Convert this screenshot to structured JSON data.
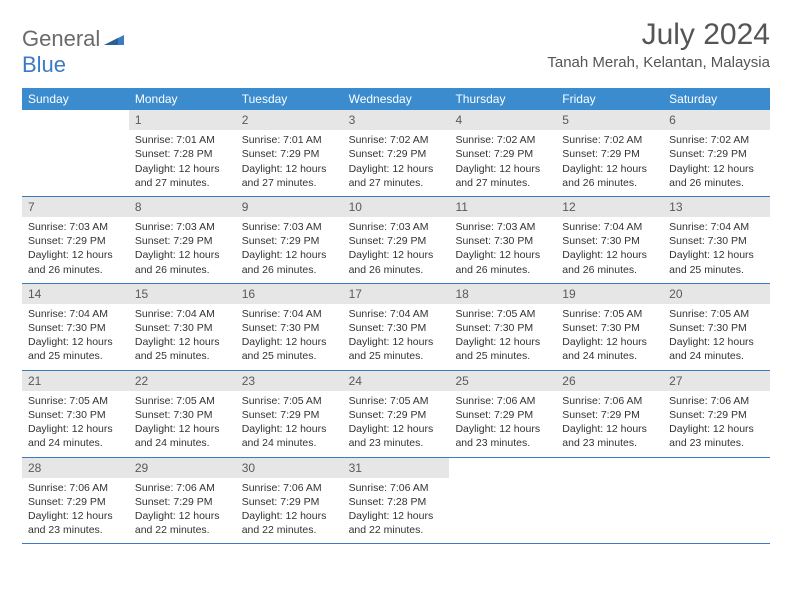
{
  "logo": {
    "text1": "General",
    "text2": "Blue"
  },
  "title": "July 2024",
  "location": "Tanah Merah, Kelantan, Malaysia",
  "colors": {
    "header_bg": "#3b8bcf",
    "header_text": "#ffffff",
    "day_num_bg": "#e6e6e6",
    "day_num_text": "#5a5a5a",
    "week_divider": "#3b7bc4",
    "body_text": "#333333",
    "logo_gray": "#6a6a6a",
    "logo_blue": "#3b7bc4"
  },
  "weekdays": [
    "Sunday",
    "Monday",
    "Tuesday",
    "Wednesday",
    "Thursday",
    "Friday",
    "Saturday"
  ],
  "start_offset": 1,
  "days": [
    {
      "n": "1",
      "sunrise": "7:01 AM",
      "sunset": "7:28 PM",
      "daylight": "12 hours and 27 minutes."
    },
    {
      "n": "2",
      "sunrise": "7:01 AM",
      "sunset": "7:29 PM",
      "daylight": "12 hours and 27 minutes."
    },
    {
      "n": "3",
      "sunrise": "7:02 AM",
      "sunset": "7:29 PM",
      "daylight": "12 hours and 27 minutes."
    },
    {
      "n": "4",
      "sunrise": "7:02 AM",
      "sunset": "7:29 PM",
      "daylight": "12 hours and 27 minutes."
    },
    {
      "n": "5",
      "sunrise": "7:02 AM",
      "sunset": "7:29 PM",
      "daylight": "12 hours and 26 minutes."
    },
    {
      "n": "6",
      "sunrise": "7:02 AM",
      "sunset": "7:29 PM",
      "daylight": "12 hours and 26 minutes."
    },
    {
      "n": "7",
      "sunrise": "7:03 AM",
      "sunset": "7:29 PM",
      "daylight": "12 hours and 26 minutes."
    },
    {
      "n": "8",
      "sunrise": "7:03 AM",
      "sunset": "7:29 PM",
      "daylight": "12 hours and 26 minutes."
    },
    {
      "n": "9",
      "sunrise": "7:03 AM",
      "sunset": "7:29 PM",
      "daylight": "12 hours and 26 minutes."
    },
    {
      "n": "10",
      "sunrise": "7:03 AM",
      "sunset": "7:29 PM",
      "daylight": "12 hours and 26 minutes."
    },
    {
      "n": "11",
      "sunrise": "7:03 AM",
      "sunset": "7:30 PM",
      "daylight": "12 hours and 26 minutes."
    },
    {
      "n": "12",
      "sunrise": "7:04 AM",
      "sunset": "7:30 PM",
      "daylight": "12 hours and 26 minutes."
    },
    {
      "n": "13",
      "sunrise": "7:04 AM",
      "sunset": "7:30 PM",
      "daylight": "12 hours and 25 minutes."
    },
    {
      "n": "14",
      "sunrise": "7:04 AM",
      "sunset": "7:30 PM",
      "daylight": "12 hours and 25 minutes."
    },
    {
      "n": "15",
      "sunrise": "7:04 AM",
      "sunset": "7:30 PM",
      "daylight": "12 hours and 25 minutes."
    },
    {
      "n": "16",
      "sunrise": "7:04 AM",
      "sunset": "7:30 PM",
      "daylight": "12 hours and 25 minutes."
    },
    {
      "n": "17",
      "sunrise": "7:04 AM",
      "sunset": "7:30 PM",
      "daylight": "12 hours and 25 minutes."
    },
    {
      "n": "18",
      "sunrise": "7:05 AM",
      "sunset": "7:30 PM",
      "daylight": "12 hours and 25 minutes."
    },
    {
      "n": "19",
      "sunrise": "7:05 AM",
      "sunset": "7:30 PM",
      "daylight": "12 hours and 24 minutes."
    },
    {
      "n": "20",
      "sunrise": "7:05 AM",
      "sunset": "7:30 PM",
      "daylight": "12 hours and 24 minutes."
    },
    {
      "n": "21",
      "sunrise": "7:05 AM",
      "sunset": "7:30 PM",
      "daylight": "12 hours and 24 minutes."
    },
    {
      "n": "22",
      "sunrise": "7:05 AM",
      "sunset": "7:30 PM",
      "daylight": "12 hours and 24 minutes."
    },
    {
      "n": "23",
      "sunrise": "7:05 AM",
      "sunset": "7:29 PM",
      "daylight": "12 hours and 24 minutes."
    },
    {
      "n": "24",
      "sunrise": "7:05 AM",
      "sunset": "7:29 PM",
      "daylight": "12 hours and 23 minutes."
    },
    {
      "n": "25",
      "sunrise": "7:06 AM",
      "sunset": "7:29 PM",
      "daylight": "12 hours and 23 minutes."
    },
    {
      "n": "26",
      "sunrise": "7:06 AM",
      "sunset": "7:29 PM",
      "daylight": "12 hours and 23 minutes."
    },
    {
      "n": "27",
      "sunrise": "7:06 AM",
      "sunset": "7:29 PM",
      "daylight": "12 hours and 23 minutes."
    },
    {
      "n": "28",
      "sunrise": "7:06 AM",
      "sunset": "7:29 PM",
      "daylight": "12 hours and 23 minutes."
    },
    {
      "n": "29",
      "sunrise": "7:06 AM",
      "sunset": "7:29 PM",
      "daylight": "12 hours and 22 minutes."
    },
    {
      "n": "30",
      "sunrise": "7:06 AM",
      "sunset": "7:29 PM",
      "daylight": "12 hours and 22 minutes."
    },
    {
      "n": "31",
      "sunrise": "7:06 AM",
      "sunset": "7:28 PM",
      "daylight": "12 hours and 22 minutes."
    }
  ],
  "labels": {
    "sunrise": "Sunrise:",
    "sunset": "Sunset:",
    "daylight": "Daylight:"
  }
}
